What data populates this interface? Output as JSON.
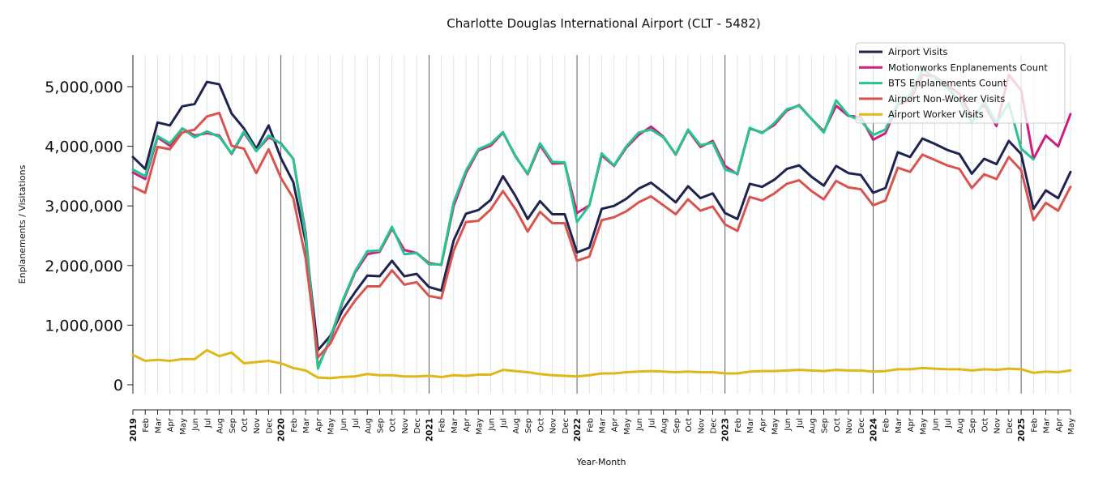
{
  "chart_data": {
    "type": "line",
    "title": "Charlotte Douglas International Airport (CLT - 5482)",
    "xlabel": "Year-Month",
    "ylabel": "Enplanements / Visitations",
    "ylim": [
      -100000,
      5550000
    ],
    "yticks": [
      0,
      1000000,
      2000000,
      3000000,
      4000000,
      5000000
    ],
    "ytick_labels": [
      "0",
      "1,000,000",
      "2,000,000",
      "3,000,000",
      "4,000,000",
      "5,000,000"
    ],
    "grid": "vertical monthly gridlines, darker lines at year boundaries",
    "legend_position": "top-right",
    "x": [
      "2019",
      "Feb",
      "Mar",
      "Apr",
      "May",
      "Jun",
      "Jul",
      "Aug",
      "Sep",
      "Oct",
      "Nov",
      "Dec",
      "2020",
      "Feb",
      "Mar",
      "Apr",
      "May",
      "Jun",
      "Jul",
      "Aug",
      "Sep",
      "Oct",
      "Nov",
      "Dec",
      "2021",
      "Feb",
      "Mar",
      "Apr",
      "May",
      "Jun",
      "Jul",
      "Aug",
      "Sep",
      "Oct",
      "Nov",
      "Dec",
      "2022",
      "Feb",
      "Mar",
      "Apr",
      "May",
      "Jun",
      "Jul",
      "Aug",
      "Sep",
      "Oct",
      "Nov",
      "Dec",
      "2023",
      "Feb",
      "Mar",
      "Apr",
      "May",
      "Jun",
      "Jul",
      "Aug",
      "Sep",
      "Oct",
      "Nov",
      "Dec",
      "2024",
      "Feb",
      "Mar",
      "Apr",
      "May",
      "Jun",
      "Jul",
      "Aug",
      "Sep",
      "Oct",
      "Nov",
      "Dec",
      "2025",
      "Feb",
      "Mar",
      "Apr",
      "May"
    ],
    "series": [
      {
        "name": "Airport Visits",
        "color": "#1f2352",
        "values": [
          3820000,
          3620000,
          4400000,
          4350000,
          4670000,
          4710000,
          5080000,
          5040000,
          4550000,
          4300000,
          3960000,
          4350000,
          3800000,
          3400000,
          2400000,
          580000,
          820000,
          1250000,
          1550000,
          1830000,
          1820000,
          2080000,
          1820000,
          1860000,
          1640000,
          1580000,
          2420000,
          2870000,
          2930000,
          3100000,
          3500000,
          3170000,
          2780000,
          3080000,
          2860000,
          2860000,
          2220000,
          2300000,
          2950000,
          3000000,
          3120000,
          3290000,
          3390000,
          3230000,
          3060000,
          3330000,
          3130000,
          3210000,
          2880000,
          2780000,
          3370000,
          3320000,
          3440000,
          3620000,
          3680000,
          3490000,
          3340000,
          3670000,
          3550000,
          3520000,
          3220000,
          3300000,
          3900000,
          3820000,
          4130000,
          4040000,
          3940000,
          3870000,
          3540000,
          3790000,
          3700000,
          4090000,
          3870000,
          2950000,
          3260000,
          3130000,
          3570000
        ]
      },
      {
        "name": "Motionworks Enplanements Count",
        "color": "#cc1f7f",
        "values": [
          3560000,
          3450000,
          4150000,
          4010000,
          4300000,
          4180000,
          4220000,
          4180000,
          3870000,
          4230000,
          3920000,
          4150000,
          4050000,
          3790000,
          2550000,
          300000,
          750000,
          1390000,
          1880000,
          2190000,
          2230000,
          2620000,
          2260000,
          2210000,
          2040000,
          2010000,
          3000000,
          3550000,
          3930000,
          4010000,
          4230000,
          3840000,
          3530000,
          4020000,
          3710000,
          3720000,
          2880000,
          3010000,
          3850000,
          3670000,
          3980000,
          4190000,
          4330000,
          4160000,
          3860000,
          4270000,
          3990000,
          4090000,
          3670000,
          3530000,
          4300000,
          4230000,
          4360000,
          4600000,
          4690000,
          4460000,
          4250000,
          4680000,
          4510000,
          4490000,
          4110000,
          4220000,
          4700000,
          4770000,
          5200000,
          5170000,
          5020000,
          4880000,
          4500000,
          4690000,
          4340000,
          5200000,
          4940000,
          3790000,
          4180000,
          4000000,
          4540000
        ]
      },
      {
        "name": "BTS Enplanements Count",
        "color": "#26c48f",
        "values": [
          3610000,
          3500000,
          4170000,
          4050000,
          4300000,
          4150000,
          4250000,
          4160000,
          3880000,
          4250000,
          3920000,
          4180000,
          4040000,
          3790000,
          2500000,
          270000,
          790000,
          1410000,
          1900000,
          2240000,
          2250000,
          2650000,
          2190000,
          2210000,
          2020000,
          2020000,
          3060000,
          3590000,
          3950000,
          4040000,
          4240000,
          3830000,
          3540000,
          4050000,
          3740000,
          3730000,
          2730000,
          3010000,
          3880000,
          3680000,
          4000000,
          4230000,
          4280000,
          4150000,
          3870000,
          4280000,
          4020000,
          4060000,
          3610000,
          3540000,
          4310000,
          4220000,
          4390000,
          4620000,
          4680000,
          4460000,
          4230000,
          4770000,
          4520000,
          4430000,
          4190000,
          4280000,
          4720000,
          4860000,
          5290000,
          5160000,
          4980000,
          4780000,
          4400000,
          4760000,
          4390000,
          4720000,
          3960000,
          3780000,
          null,
          null,
          null
        ]
      },
      {
        "name": "Airport Non-Worker Visits",
        "color": "#d9534f",
        "values": [
          3320000,
          3220000,
          3990000,
          3950000,
          4230000,
          4280000,
          4500000,
          4560000,
          4010000,
          3960000,
          3550000,
          3950000,
          3470000,
          3130000,
          2120000,
          460000,
          690000,
          1110000,
          1410000,
          1650000,
          1650000,
          1920000,
          1680000,
          1720000,
          1490000,
          1450000,
          2250000,
          2730000,
          2750000,
          2940000,
          3250000,
          2950000,
          2570000,
          2900000,
          2710000,
          2710000,
          2080000,
          2150000,
          2760000,
          2810000,
          2910000,
          3060000,
          3160000,
          3010000,
          2860000,
          3110000,
          2920000,
          2990000,
          2690000,
          2580000,
          3150000,
          3090000,
          3210000,
          3370000,
          3430000,
          3250000,
          3110000,
          3420000,
          3310000,
          3280000,
          3010000,
          3090000,
          3640000,
          3570000,
          3860000,
          3770000,
          3680000,
          3620000,
          3300000,
          3530000,
          3450000,
          3820000,
          3600000,
          2760000,
          3050000,
          2920000,
          3320000
        ]
      },
      {
        "name": "Airport Worker Visits",
        "color": "#e0b715",
        "values": [
          500000,
          400000,
          420000,
          400000,
          430000,
          430000,
          580000,
          480000,
          540000,
          360000,
          380000,
          400000,
          360000,
          280000,
          240000,
          120000,
          110000,
          130000,
          140000,
          180000,
          160000,
          160000,
          140000,
          140000,
          150000,
          130000,
          160000,
          150000,
          170000,
          170000,
          250000,
          230000,
          210000,
          180000,
          160000,
          150000,
          140000,
          160000,
          190000,
          190000,
          210000,
          220000,
          230000,
          220000,
          210000,
          220000,
          210000,
          210000,
          190000,
          190000,
          220000,
          230000,
          230000,
          240000,
          250000,
          240000,
          230000,
          250000,
          240000,
          240000,
          220000,
          230000,
          260000,
          260000,
          280000,
          270000,
          260000,
          260000,
          240000,
          260000,
          250000,
          270000,
          260000,
          200000,
          220000,
          210000,
          240000
        ]
      }
    ]
  }
}
